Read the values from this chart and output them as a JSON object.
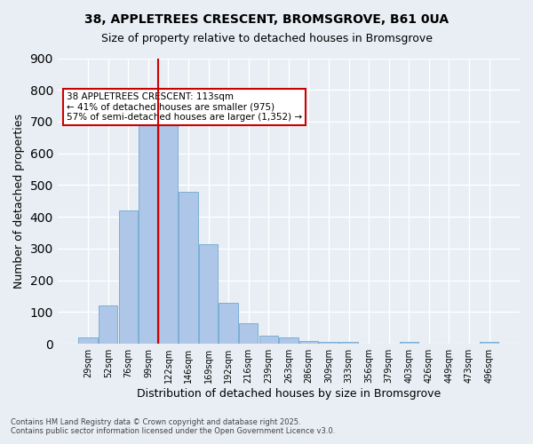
{
  "title1": "38, APPLETREES CRESCENT, BROMSGROVE, B61 0UA",
  "title2": "Size of property relative to detached houses in Bromsgrove",
  "xlabel": "Distribution of detached houses by size in Bromsgrove",
  "ylabel": "Number of detached properties",
  "bar_labels": [
    "29sqm",
    "52sqm",
    "76sqm",
    "99sqm",
    "122sqm",
    "146sqm",
    "169sqm",
    "192sqm",
    "216sqm",
    "239sqm",
    "263sqm",
    "286sqm",
    "309sqm",
    "333sqm",
    "356sqm",
    "379sqm",
    "403sqm",
    "426sqm",
    "449sqm",
    "473sqm",
    "496sqm"
  ],
  "bar_values": [
    20,
    120,
    420,
    735,
    735,
    480,
    315,
    130,
    65,
    25,
    20,
    10,
    5,
    5,
    0,
    0,
    5,
    0,
    0,
    0,
    5
  ],
  "bar_color": "#aec6e8",
  "bar_edge_color": "#7aafd4",
  "vline_x": 4,
  "vline_color": "#cc0000",
  "annotation_text": "38 APPLETREES CRESCENT: 113sqm\n← 41% of detached houses are smaller (975)\n57% of semi-detached houses are larger (1,352) →",
  "annotation_box_color": "#ffffff",
  "annotation_box_edge": "#cc0000",
  "ylim": [
    0,
    900
  ],
  "yticks": [
    0,
    100,
    200,
    300,
    400,
    500,
    600,
    700,
    800,
    900
  ],
  "background_color": "#e8eef4",
  "grid_color": "#ffffff",
  "footer": "Contains HM Land Registry data © Crown copyright and database right 2025.\nContains public sector information licensed under the Open Government Licence v3.0."
}
